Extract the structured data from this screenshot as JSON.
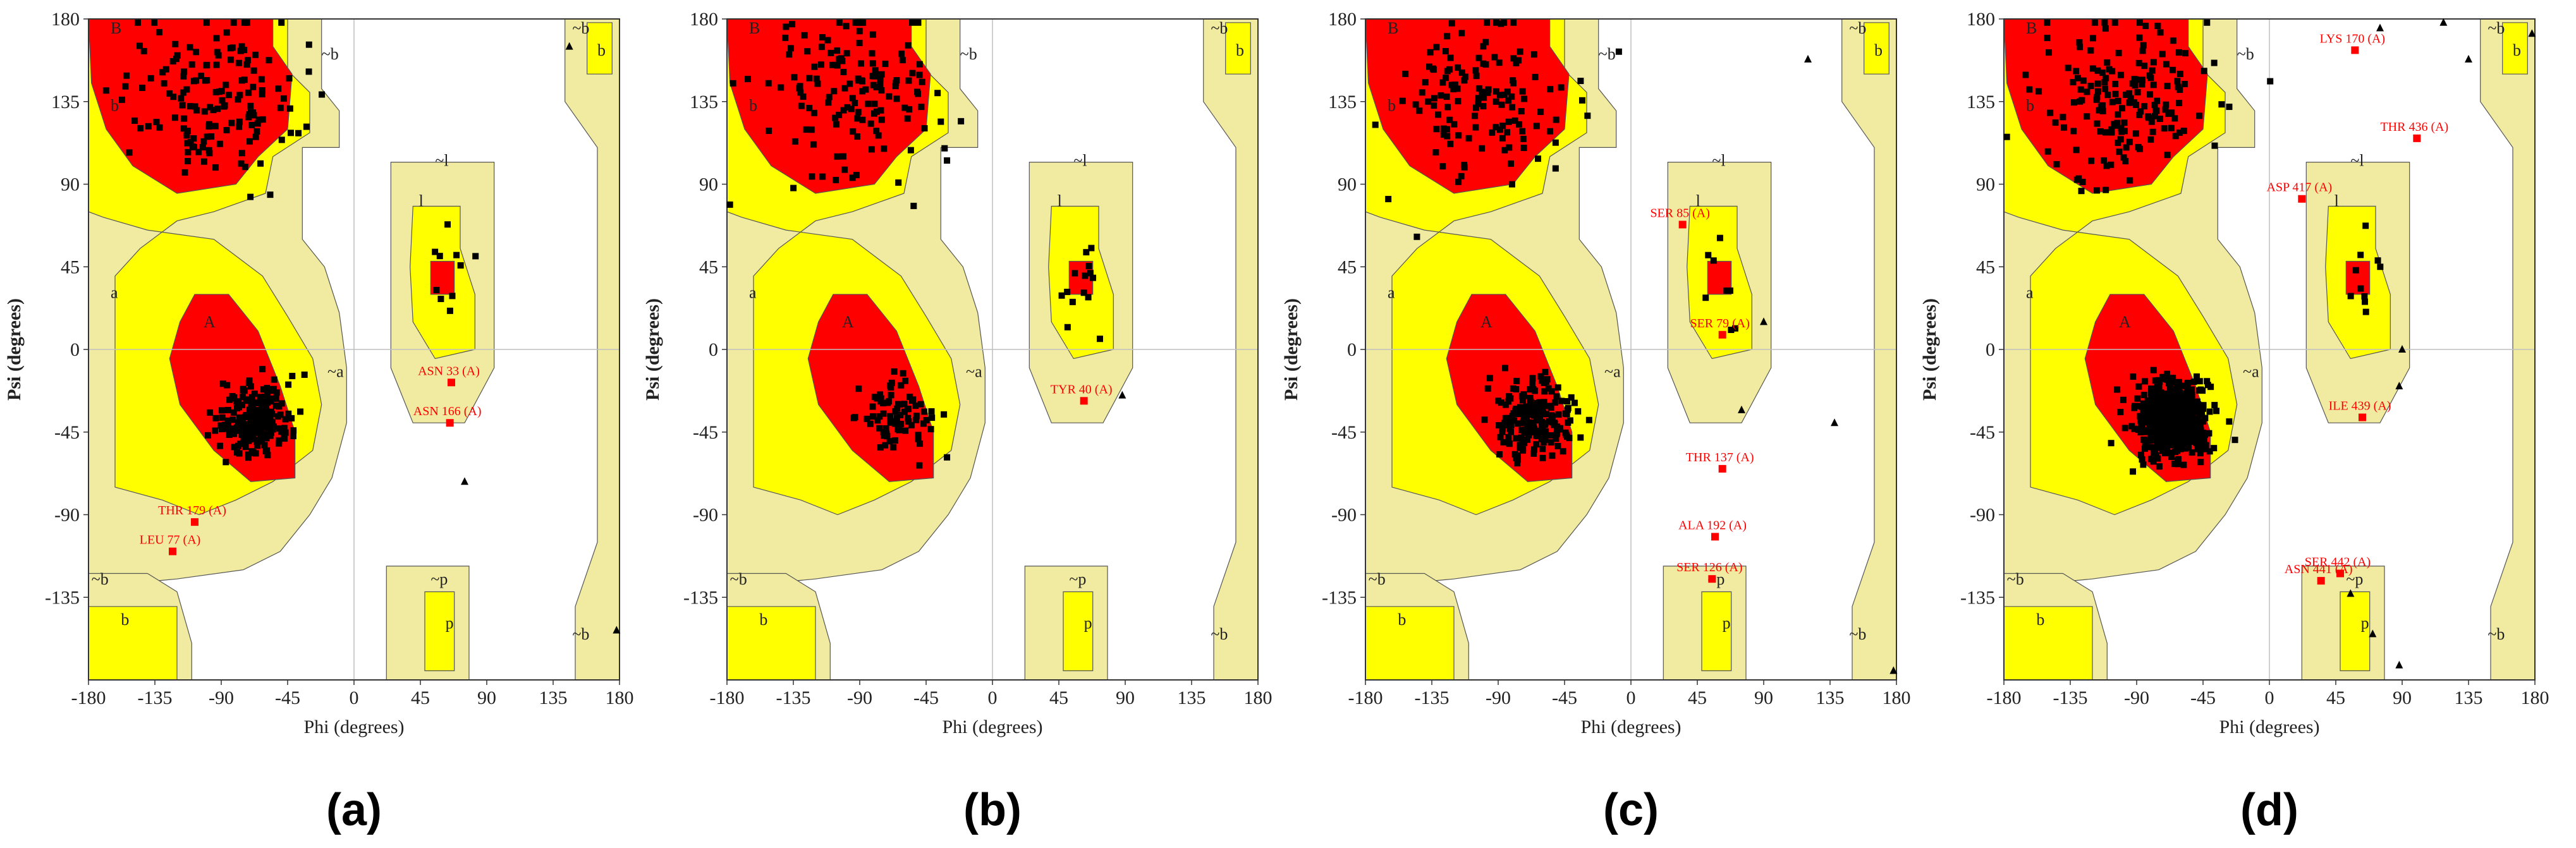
{
  "figure": {
    "colors": {
      "core": "#ff0000",
      "allowed": "#ffff00",
      "generous": "#f0eba0",
      "outline": "#555555",
      "point": "#000000",
      "outlier": "#ff0000",
      "axis": "#bfbfbf"
    }
  },
  "chart_data": [
    {
      "type": "scatter",
      "panel_label": "(a)",
      "xlabel": "Phi (degrees)",
      "ylabel": "Psi (degrees)",
      "xlim": [
        -180,
        180
      ],
      "ylim": [
        -180,
        180
      ],
      "xticks": [
        "-180",
        "-135",
        "-90",
        "-45",
        "0",
        "45",
        "90",
        "135",
        "180"
      ],
      "yticks": [
        "180",
        "135",
        "90",
        "45",
        "0",
        "-45",
        "-90",
        "-135"
      ],
      "region_labels": [
        {
          "text": "B",
          "phi": -165,
          "psi": 172
        },
        {
          "text": "b",
          "phi": -165,
          "psi": 130
        },
        {
          "text": "~b",
          "phi": -22,
          "psi": 158
        },
        {
          "text": "a",
          "phi": -165,
          "psi": 28
        },
        {
          "text": "A",
          "phi": -102,
          "psi": 12
        },
        {
          "text": "~a",
          "phi": -18,
          "psi": -15
        },
        {
          "text": "~l",
          "phi": 55,
          "psi": 100
        },
        {
          "text": "l",
          "phi": 44,
          "psi": 78
        },
        {
          "text": "~b",
          "phi": -178,
          "psi": -128
        },
        {
          "text": "b",
          "phi": -158,
          "psi": -150
        },
        {
          "text": "~p",
          "phi": 52,
          "psi": -128
        },
        {
          "text": "p",
          "phi": 62,
          "psi": -152
        },
        {
          "text": "~b",
          "phi": 148,
          "psi": 172
        },
        {
          "text": "b",
          "phi": 165,
          "psi": 160
        },
        {
          "text": "~b",
          "phi": 148,
          "psi": -158
        }
      ],
      "outliers": [
        {
          "label": "ASN 33 (A)",
          "phi": 66,
          "psi": -18
        },
        {
          "label": "ASN 166 (A)",
          "phi": 65,
          "psi": -40
        },
        {
          "label": "THR 179 (A)",
          "phi": -108,
          "psi": -94
        },
        {
          "label": "LEU 77 (A)",
          "phi": -123,
          "psi": -110
        }
      ],
      "triangles": [
        {
          "phi": 75,
          "psi": -72
        },
        {
          "phi": 178,
          "psi": -153
        },
        {
          "phi": 146,
          "psi": 165
        }
      ]
    },
    {
      "type": "scatter",
      "panel_label": "(b)",
      "xlabel": "Phi (degrees)",
      "ylabel": "Psi (degrees)",
      "xlim": [
        -180,
        180
      ],
      "ylim": [
        -180,
        180
      ],
      "xticks": [
        "-180",
        "-135",
        "-90",
        "-45",
        "0",
        "45",
        "90",
        "135",
        "180"
      ],
      "yticks": [
        "180",
        "135",
        "90",
        "45",
        "0",
        "-45",
        "-90",
        "-135"
      ],
      "region_labels": [
        {
          "text": "B",
          "phi": -165,
          "psi": 172
        },
        {
          "text": "b",
          "phi": -165,
          "psi": 130
        },
        {
          "text": "~b",
          "phi": -22,
          "psi": 158
        },
        {
          "text": "a",
          "phi": -165,
          "psi": 28
        },
        {
          "text": "A",
          "phi": -102,
          "psi": 12
        },
        {
          "text": "~a",
          "phi": -18,
          "psi": -15
        },
        {
          "text": "~l",
          "phi": 55,
          "psi": 100
        },
        {
          "text": "l",
          "phi": 44,
          "psi": 78
        },
        {
          "text": "~b",
          "phi": -178,
          "psi": -128
        },
        {
          "text": "b",
          "phi": -158,
          "psi": -150
        },
        {
          "text": "~p",
          "phi": 52,
          "psi": -128
        },
        {
          "text": "p",
          "phi": 62,
          "psi": -152
        },
        {
          "text": "~b",
          "phi": 148,
          "psi": 172
        },
        {
          "text": "b",
          "phi": 165,
          "psi": 160
        },
        {
          "text": "~b",
          "phi": 148,
          "psi": -158
        }
      ],
      "outliers": [
        {
          "label": "TYR 40 (A)",
          "phi": 62,
          "psi": -28
        }
      ],
      "triangles": [
        {
          "phi": 88,
          "psi": -25
        }
      ]
    },
    {
      "type": "scatter",
      "panel_label": "(c)",
      "xlabel": "Phi (degrees)",
      "ylabel": "Psi (degrees)",
      "xlim": [
        -180,
        180
      ],
      "ylim": [
        -180,
        180
      ],
      "xticks": [
        "-180",
        "-135",
        "-90",
        "-45",
        "0",
        "45",
        "90",
        "135",
        "180"
      ],
      "yticks": [
        "180",
        "135",
        "90",
        "45",
        "0",
        "-45",
        "-90",
        "-135"
      ],
      "region_labels": [
        {
          "text": "B",
          "phi": -165,
          "psi": 172
        },
        {
          "text": "b",
          "phi": -165,
          "psi": 130
        },
        {
          "text": "~b",
          "phi": -22,
          "psi": 158
        },
        {
          "text": "a",
          "phi": -165,
          "psi": 28
        },
        {
          "text": "A",
          "phi": -102,
          "psi": 12
        },
        {
          "text": "~a",
          "phi": -18,
          "psi": -15
        },
        {
          "text": "~l",
          "phi": 55,
          "psi": 100
        },
        {
          "text": "l",
          "phi": 44,
          "psi": 78
        },
        {
          "text": "~b",
          "phi": -178,
          "psi": -128
        },
        {
          "text": "b",
          "phi": -158,
          "psi": -150
        },
        {
          "text": "~p",
          "phi": 52,
          "psi": -128
        },
        {
          "text": "p",
          "phi": 62,
          "psi": -152
        },
        {
          "text": "~b",
          "phi": 148,
          "psi": 172
        },
        {
          "text": "b",
          "phi": 165,
          "psi": 160
        },
        {
          "text": "~b",
          "phi": 148,
          "psi": -158
        }
      ],
      "outliers": [
        {
          "label": "SER 85 (A)",
          "phi": 35,
          "psi": 68
        },
        {
          "label": "SER 79 (A)",
          "phi": 62,
          "psi": 8
        },
        {
          "label": "THR 137 (A)",
          "phi": 62,
          "psi": -65
        },
        {
          "label": "ALA 192 (A)",
          "phi": 57,
          "psi": -102
        },
        {
          "label": "SER 126 (A)",
          "phi": 55,
          "psi": -125
        }
      ],
      "triangles": [
        {
          "phi": 90,
          "psi": 15
        },
        {
          "phi": 75,
          "psi": -33
        },
        {
          "phi": 138,
          "psi": -40
        },
        {
          "phi": 120,
          "psi": 158
        },
        {
          "phi": 178,
          "psi": -175
        }
      ]
    },
    {
      "type": "scatter",
      "panel_label": "(d)",
      "xlabel": "Phi (degrees)",
      "ylabel": "Psi (degrees)",
      "xlim": [
        -180,
        180
      ],
      "ylim": [
        -180,
        180
      ],
      "xticks": [
        "-180",
        "-135",
        "-90",
        "-45",
        "0",
        "45",
        "90",
        "135",
        "180"
      ],
      "yticks": [
        "180",
        "135",
        "90",
        "45",
        "0",
        "-45",
        "-90",
        "-135"
      ],
      "region_labels": [
        {
          "text": "B",
          "phi": -165,
          "psi": 172
        },
        {
          "text": "b",
          "phi": -165,
          "psi": 130
        },
        {
          "text": "~b",
          "phi": -22,
          "psi": 158
        },
        {
          "text": "a",
          "phi": -165,
          "psi": 28
        },
        {
          "text": "A",
          "phi": -102,
          "psi": 12
        },
        {
          "text": "~a",
          "phi": -18,
          "psi": -15
        },
        {
          "text": "~l",
          "phi": 55,
          "psi": 100
        },
        {
          "text": "l",
          "phi": 44,
          "psi": 78
        },
        {
          "text": "~b",
          "phi": -178,
          "psi": -128
        },
        {
          "text": "b",
          "phi": -158,
          "psi": -150
        },
        {
          "text": "~p",
          "phi": 52,
          "psi": -128
        },
        {
          "text": "p",
          "phi": 62,
          "psi": -152
        },
        {
          "text": "~b",
          "phi": 148,
          "psi": 172
        },
        {
          "text": "b",
          "phi": 165,
          "psi": 160
        },
        {
          "text": "~b",
          "phi": 148,
          "psi": -158
        }
      ],
      "outliers": [
        {
          "label": "LYS 170 (A)",
          "phi": 58,
          "psi": 163
        },
        {
          "label": "THR 436 (A)",
          "phi": 100,
          "psi": 115
        },
        {
          "label": "ASP 417 (A)",
          "phi": 22,
          "psi": 82
        },
        {
          "label": "ILE 439 (A)",
          "phi": 63,
          "psi": -37
        },
        {
          "label": "SER 442 (A)",
          "phi": 48,
          "psi": -122
        },
        {
          "label": "ASN 441 (A)",
          "phi": 35,
          "psi": -126
        }
      ],
      "triangles": [
        {
          "phi": 75,
          "psi": 175
        },
        {
          "phi": 118,
          "psi": 178
        },
        {
          "phi": 178,
          "psi": 172
        },
        {
          "phi": 135,
          "psi": 158
        },
        {
          "phi": 90,
          "psi": 0
        },
        {
          "phi": 88,
          "psi": -20
        },
        {
          "phi": 55,
          "psi": -133
        },
        {
          "phi": 70,
          "psi": -155
        },
        {
          "phi": 88,
          "psi": -172
        }
      ]
    }
  ]
}
